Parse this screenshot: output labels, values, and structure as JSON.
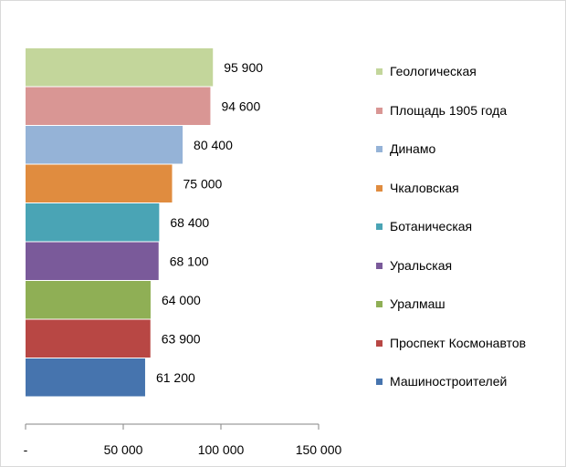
{
  "chart_data": {
    "type": "bar",
    "orientation": "horizontal",
    "title": "",
    "xlabel": "",
    "ylabel": "",
    "xlim": [
      0,
      150000
    ],
    "x_ticks": [
      0,
      50000,
      100000,
      150000
    ],
    "x_tick_labels": [
      "-",
      "50 000",
      "100 000",
      "150 000"
    ],
    "grid": false,
    "legend_position": "right",
    "series": [
      {
        "name": "Геологическая",
        "value": 95900,
        "label": "95 900",
        "color": "#c3d69b"
      },
      {
        "name": "Площадь 1905 года",
        "value": 94600,
        "label": "94 600",
        "color": "#d99694"
      },
      {
        "name": "Динамо",
        "value": 80400,
        "label": "80 400",
        "color": "#95b3d7"
      },
      {
        "name": "Чкаловская",
        "value": 75000,
        "label": "75 000",
        "color": "#e08c3f"
      },
      {
        "name": "Ботаническая",
        "value": 68400,
        "label": "68 400",
        "color": "#4aa4b5"
      },
      {
        "name": "Уральская",
        "value": 68100,
        "label": "68 100",
        "color": "#7a5a9a"
      },
      {
        "name": "Уралмаш",
        "value": 64000,
        "label": "64 000",
        "color": "#8faf55"
      },
      {
        "name": "Проспект Космонавтов",
        "value": 63900,
        "label": "63 900",
        "color": "#b84744"
      },
      {
        "name": "Машиностроителей",
        "value": 61200,
        "label": "61 200",
        "color": "#4674ae"
      }
    ]
  }
}
